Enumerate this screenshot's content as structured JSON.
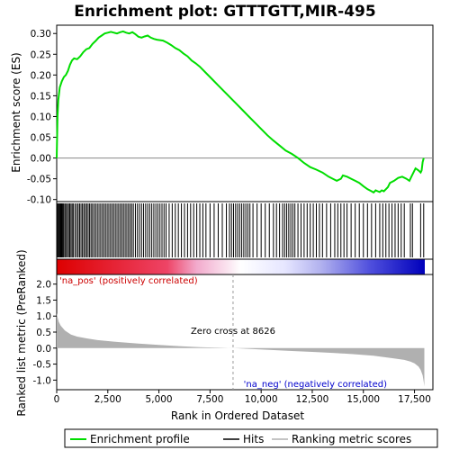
{
  "chart_data": {
    "type": "line",
    "title": "Enrichment plot: GTTTGTT,MIR-495",
    "xlabel": "Rank in Ordered Dataset",
    "panels": {
      "enrichment": {
        "ylabel": "Enrichment score (ES)",
        "ylim": [
          -0.105,
          0.32
        ],
        "yticks": [
          "0.30",
          "0.25",
          "0.20",
          "0.15",
          "0.10",
          "0.05",
          "0.00",
          "-0.05",
          "-0.10"
        ],
        "ytick_values": [
          0.3,
          0.25,
          0.2,
          0.15,
          0.1,
          0.05,
          0.0,
          -0.05,
          -0.1
        ],
        "series": [
          {
            "name": "Enrichment profile",
            "color": "#00dd00",
            "x": [
              0,
              40,
              80,
              150,
              250,
              350,
              450,
              550,
              650,
              750,
              850,
              1000,
              1150,
              1300,
              1450,
              1600,
              1750,
              1900,
              2050,
              2200,
              2350,
              2500,
              2650,
              2800,
              2950,
              3100,
              3250,
              3400,
              3550,
              3700,
              3850,
              4000,
              4150,
              4300,
              4450,
              4600,
              4750,
              4900,
              5050,
              5200,
              5400,
              5600,
              5800,
              6000,
              6200,
              6400,
              6600,
              6800,
              7000,
              7300,
              7600,
              7900,
              8200,
              8500,
              8800,
              9100,
              9400,
              9700,
              10000,
              10300,
              10600,
              10900,
              11200,
              11500,
              11800,
              12100,
              12400,
              12700,
              13000,
              13300,
              13500,
              13700,
              13900,
              14000,
              14200,
              14400,
              14600,
              14800,
              15000,
              15200,
              15400,
              15500,
              15600,
              15700,
              15800,
              15900,
              16000,
              16100,
              16200,
              16300,
              16500,
              16700,
              16900,
              17100,
              17250,
              17350,
              17450,
              17550,
              17700,
              17800,
              17850,
              17900,
              17950
            ],
            "y": [
              0.0,
              0.1,
              0.14,
              0.17,
              0.185,
              0.195,
              0.2,
              0.21,
              0.225,
              0.235,
              0.24,
              0.238,
              0.245,
              0.255,
              0.262,
              0.265,
              0.275,
              0.282,
              0.29,
              0.295,
              0.3,
              0.302,
              0.304,
              0.302,
              0.3,
              0.303,
              0.305,
              0.302,
              0.3,
              0.303,
              0.298,
              0.292,
              0.29,
              0.293,
              0.295,
              0.29,
              0.287,
              0.285,
              0.284,
              0.283,
              0.278,
              0.272,
              0.265,
              0.26,
              0.252,
              0.245,
              0.235,
              0.228,
              0.22,
              0.205,
              0.19,
              0.175,
              0.16,
              0.145,
              0.13,
              0.115,
              0.1,
              0.085,
              0.07,
              0.055,
              0.042,
              0.03,
              0.018,
              0.01,
              0.0,
              -0.012,
              -0.022,
              -0.028,
              -0.035,
              -0.045,
              -0.05,
              -0.055,
              -0.05,
              -0.042,
              -0.045,
              -0.05,
              -0.055,
              -0.06,
              -0.068,
              -0.075,
              -0.08,
              -0.083,
              -0.078,
              -0.08,
              -0.082,
              -0.078,
              -0.08,
              -0.075,
              -0.07,
              -0.06,
              -0.055,
              -0.048,
              -0.045,
              -0.05,
              -0.055,
              -0.045,
              -0.035,
              -0.025,
              -0.03,
              -0.035,
              -0.03,
              -0.01,
              0.0
            ]
          }
        ],
        "baseline": 0.0
      },
      "hits": {
        "legend": "Hits",
        "ranks": [
          20,
          60,
          100,
          140,
          180,
          220,
          260,
          300,
          340,
          400,
          450,
          520,
          580,
          640,
          700,
          760,
          820,
          900,
          980,
          1050,
          1120,
          1190,
          1260,
          1330,
          1400,
          1470,
          1540,
          1610,
          1680,
          1750,
          1830,
          1910,
          1990,
          2070,
          2150,
          2230,
          2310,
          2390,
          2470,
          2550,
          2630,
          2710,
          2790,
          2870,
          2950,
          3030,
          3110,
          3190,
          3270,
          3350,
          3430,
          3510,
          3590,
          3670,
          3750,
          3850,
          3950,
          4050,
          4150,
          4250,
          4350,
          4450,
          4550,
          4650,
          4750,
          4850,
          4950,
          5050,
          5150,
          5250,
          5350,
          5500,
          5650,
          5800,
          5950,
          6100,
          6250,
          6400,
          6550,
          6700,
          6850,
          7000,
          7150,
          7300,
          7500,
          7700,
          7900,
          8100,
          8300,
          8450,
          8550,
          8650,
          8750,
          8850,
          8950,
          9050,
          9150,
          9250,
          9350,
          9450,
          9600,
          9800,
          10000,
          10200,
          10400,
          10600,
          10750,
          10900,
          11050,
          11150,
          11250,
          11350,
          11450,
          11550,
          11650,
          11800,
          11950,
          12100,
          12250,
          12400,
          12550,
          12700,
          12850,
          13000,
          13200,
          13400,
          13600,
          13750,
          13900,
          14050,
          14200,
          14400,
          14600,
          14800,
          15000,
          15200,
          15400,
          15600,
          15800,
          15950,
          16100,
          16250,
          16400,
          16550,
          16700,
          16850,
          17000,
          17300,
          17400,
          17800,
          17950
        ]
      },
      "ranking_bar": {
        "pos_label": "'na_pos' (positively correlated)",
        "neg_label": "'na_neg' (negatively correlated)",
        "pos_color": "#dd0000",
        "neg_color": "#0000cc"
      },
      "metric": {
        "ylabel": "Ranked list metric (PreRanked)",
        "ylim": [
          -1.3,
          2.3
        ],
        "yticks": [
          "2.0",
          "1.5",
          "1.0",
          "0.5",
          "0.0",
          "-0.5",
          "-1.0"
        ],
        "ytick_values": [
          2.0,
          1.5,
          1.0,
          0.5,
          0.0,
          -0.5,
          -1.0
        ],
        "legend": "Ranking metric scores",
        "fill_color": "#b0b0b0",
        "x": [
          0,
          50,
          100,
          200,
          400,
          700,
          1000,
          1500,
          2000,
          3000,
          4000,
          5000,
          6000,
          7000,
          8000,
          8626,
          9500,
          10500,
          11500,
          12500,
          13500,
          14500,
          15500,
          16000,
          16500,
          17000,
          17300,
          17500,
          17700,
          17800,
          17900,
          17950,
          17980
        ],
        "y": [
          1.1,
          0.95,
          0.82,
          0.7,
          0.55,
          0.42,
          0.36,
          0.3,
          0.25,
          0.19,
          0.14,
          0.1,
          0.06,
          0.03,
          0.01,
          0.0,
          -0.03,
          -0.06,
          -0.09,
          -0.12,
          -0.15,
          -0.19,
          -0.24,
          -0.28,
          -0.32,
          -0.37,
          -0.42,
          -0.48,
          -0.58,
          -0.68,
          -0.85,
          -1.05,
          -1.2
        ],
        "zero_cross_label": "Zero cross at 8626",
        "zero_cross": 8626
      }
    },
    "xlim": [
      0,
      18400
    ],
    "xticks": [
      "0",
      "2,500",
      "5,000",
      "7,500",
      "10,000",
      "12,500",
      "15,000",
      "17,500"
    ],
    "xtick_values": [
      0,
      2500,
      5000,
      7500,
      10000,
      12500,
      15000,
      17500
    ],
    "legend_items": [
      "Enrichment profile",
      "Hits",
      "Ranking metric scores"
    ],
    "legend_position": "bottom"
  }
}
